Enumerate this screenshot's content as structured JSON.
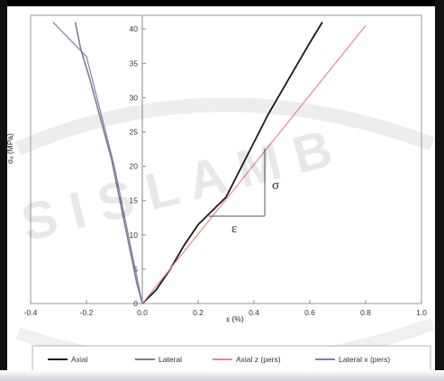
{
  "chart_data": {
    "type": "line",
    "xlabel": "ε (%)",
    "ylabel": "σₐ (MPa)",
    "xlim": [
      -0.4,
      1.0
    ],
    "ylim": [
      0,
      42
    ],
    "x_ticks": [
      "-0.4",
      "-0.2",
      "0.0",
      "0.2",
      "0.4",
      "0.6",
      "0.8",
      "1.0"
    ],
    "y_ticks": [
      "0",
      "5",
      "10",
      "15",
      "20",
      "25",
      "30",
      "35",
      "40"
    ],
    "grid": false,
    "legend_position": "bottom",
    "series": [
      {
        "name": "Axial",
        "color": "#1a1a1a",
        "points": [
          [
            0.0,
            0
          ],
          [
            0.05,
            2
          ],
          [
            0.1,
            5
          ],
          [
            0.15,
            8.5
          ],
          [
            0.2,
            11.5
          ],
          [
            0.25,
            13.5
          ],
          [
            0.3,
            15.5
          ],
          [
            0.35,
            19.5
          ],
          [
            0.4,
            23.5
          ],
          [
            0.45,
            27.5
          ],
          [
            0.5,
            31
          ],
          [
            0.55,
            34.5
          ],
          [
            0.6,
            38
          ],
          [
            0.645,
            41
          ]
        ]
      },
      {
        "name": "Lateral",
        "color": "#7f7f7f",
        "points": [
          [
            0.0,
            0
          ],
          [
            -0.02,
            3
          ],
          [
            -0.05,
            9
          ],
          [
            -0.08,
            15
          ],
          [
            -0.11,
            21
          ],
          [
            -0.15,
            27
          ],
          [
            -0.19,
            33
          ],
          [
            -0.22,
            37
          ],
          [
            -0.24,
            41
          ]
        ]
      },
      {
        "name": "Axial z (pers)",
        "color": "#e58a8a",
        "points": [
          [
            0.0,
            0
          ],
          [
            0.8,
            40.5
          ]
        ]
      },
      {
        "name": "Lateral x (pers)",
        "color": "#7b7fbd",
        "points": [
          [
            0.0,
            0
          ],
          [
            -0.1,
            20
          ],
          [
            -0.2,
            36
          ],
          [
            -0.32,
            41
          ]
        ]
      }
    ],
    "annotations": [
      {
        "text": "σ",
        "position": "right of strain-triangle"
      },
      {
        "text": "ε",
        "position": "below strain-triangle"
      }
    ]
  },
  "watermark": "S I S L A M   B"
}
